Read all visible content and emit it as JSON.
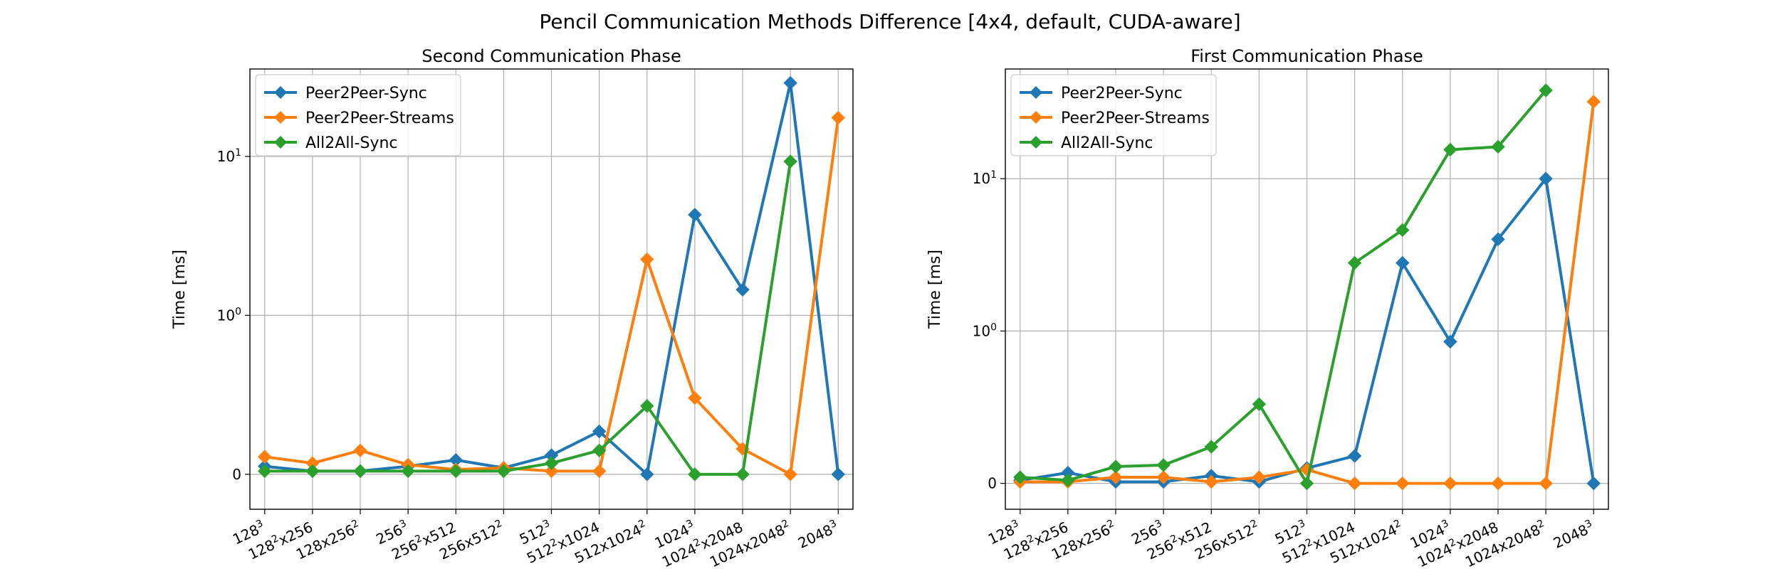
{
  "suptitle": "Pencil Communication Methods Difference [4x4, default, CUDA-aware]",
  "colors": {
    "Peer2Peer-Sync": "#1f77b4",
    "Peer2Peer-Streams": "#ff7f0e",
    "All2All-Sync": "#2ca02c"
  },
  "chart_data": [
    {
      "type": "line",
      "title": "Second Communication Phase",
      "ylabel": "Time [ms]",
      "yscale": "symlog",
      "grid": true,
      "legend_position": "top-left",
      "yticks": [
        "0",
        "10^0",
        "10^1"
      ],
      "categories": [
        "128^3",
        "128^2x256",
        "128x256^2",
        "256^3",
        "256^2x512",
        "256x512^2",
        "512^3",
        "512^2x1024",
        "512x1024^2",
        "1024^3",
        "1024^2x2048",
        "1024x2048^2",
        "2048^3"
      ],
      "series": [
        {
          "name": "Peer2Peer-Sync",
          "values": [
            0.05,
            0.02,
            0.02,
            0.05,
            0.09,
            0.04,
            0.12,
            0.27,
            0.0,
            4.3,
            1.45,
            29.0,
            0.0
          ]
        },
        {
          "name": "Peer2Peer-Streams",
          "values": [
            0.11,
            0.07,
            0.15,
            0.06,
            0.03,
            0.04,
            0.02,
            0.02,
            2.25,
            0.48,
            0.16,
            0.0,
            17.5
          ]
        },
        {
          "name": "All2All-Sync",
          "values": [
            0.02,
            0.02,
            0.02,
            0.02,
            0.02,
            0.02,
            0.07,
            0.15,
            0.43,
            0.0,
            0.0,
            9.3,
            null
          ]
        }
      ]
    },
    {
      "type": "line",
      "title": "First Communication Phase",
      "ylabel": "Time [ms]",
      "yscale": "symlog",
      "grid": true,
      "legend_position": "top-left",
      "yticks": [
        "0",
        "10^0",
        "10^1"
      ],
      "categories": [
        "128^3",
        "128^2x256",
        "128x256^2",
        "256^3",
        "256^2x512",
        "256x512^2",
        "512^3",
        "512^2x1024",
        "512x1024^2",
        "1024^3",
        "1024^2x2048",
        "1024x2048^2",
        "2048^3"
      ],
      "series": [
        {
          "name": "Peer2Peer-Sync",
          "values": [
            0.02,
            0.07,
            0.01,
            0.01,
            0.05,
            0.01,
            0.1,
            0.18,
            2.8,
            0.93,
            4.0,
            10.0,
            0.0
          ]
        },
        {
          "name": "Peer2Peer-Streams",
          "values": [
            0.01,
            0.01,
            0.04,
            0.04,
            0.01,
            0.04,
            0.09,
            0.0,
            0.0,
            0.0,
            0.0,
            0.0,
            32.0
          ]
        },
        {
          "name": "All2All-Sync",
          "values": [
            0.04,
            0.02,
            0.11,
            0.12,
            0.24,
            0.52,
            0.0,
            2.8,
            4.6,
            15.5,
            16.2,
            38.0,
            null
          ]
        }
      ]
    }
  ]
}
